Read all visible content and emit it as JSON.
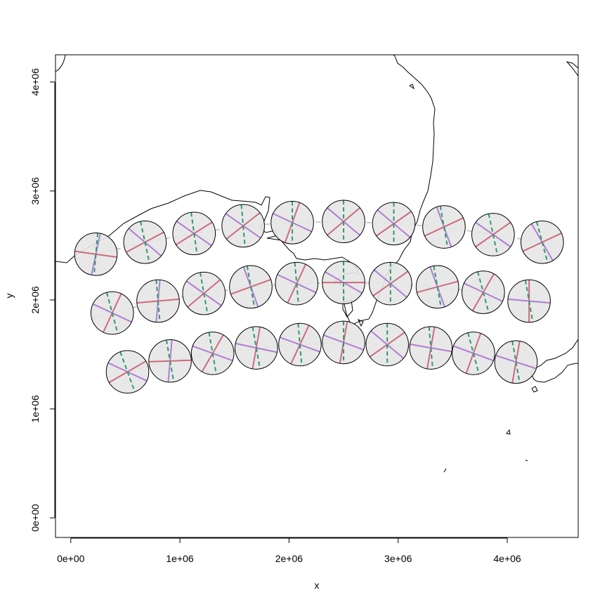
{
  "chart_data": {
    "type": "scatter",
    "title": "",
    "xlabel": "x",
    "ylabel": "y",
    "xlim": [
      -140000,
      4650000
    ],
    "ylim": [
      -180000,
      4250000
    ],
    "x_ticks": [
      {
        "value": 0,
        "label": "0e+00"
      },
      {
        "value": 1000000,
        "label": "1e+06"
      },
      {
        "value": 2000000,
        "label": "2e+06"
      },
      {
        "value": 3000000,
        "label": "3e+06"
      },
      {
        "value": 4000000,
        "label": "4e+06"
      }
    ],
    "y_ticks": [
      {
        "value": 0,
        "label": "0e+00"
      },
      {
        "value": 1000000,
        "label": "1e+06"
      },
      {
        "value": 2000000,
        "label": "2e+06"
      },
      {
        "value": 3000000,
        "label": "3e+06"
      },
      {
        "value": 4000000,
        "label": "4e+06"
      }
    ],
    "grid": false,
    "legend": "none",
    "colors": {
      "disc_fill": "#e5e5e5",
      "disc_stroke": "#000000",
      "pink_line": "#cd6b7e",
      "purple_line": "#b07ed2",
      "green_dashed": "#2e9b6a",
      "grey_dashed": "#bdbdbd",
      "coastline": "#000000"
    },
    "disc_radius": 195000,
    "indicatrix_rows": [
      {
        "row": "top",
        "points": [
          {
            "x": 230000,
            "y": 2420000,
            "pink": -8,
            "purple": -102,
            "green": -95
          },
          {
            "x": 680000,
            "y": 2530000,
            "pink": 28,
            "purple": -40,
            "green": -78
          },
          {
            "x": 1130000,
            "y": 2610000,
            "pink": 32,
            "purple": -35,
            "green": -82
          },
          {
            "x": 1580000,
            "y": 2680000,
            "pink": 38,
            "purple": -35,
            "green": -85
          },
          {
            "x": 2030000,
            "y": 2710000,
            "pink": 70,
            "purple": -25,
            "green": -90
          },
          {
            "x": 2500000,
            "y": 2720000,
            "pink": 40,
            "purple": -40,
            "green": -90
          },
          {
            "x": 2960000,
            "y": 2700000,
            "pink": 35,
            "purple": -40,
            "green": -90
          },
          {
            "x": 3420000,
            "y": 2670000,
            "pink": 25,
            "purple": -70,
            "green": -80
          },
          {
            "x": 3870000,
            "y": 2600000,
            "pink": 35,
            "purple": -35,
            "green": -78
          },
          {
            "x": 4320000,
            "y": 2530000,
            "pink": 25,
            "purple": -60,
            "green": -75
          }
        ]
      },
      {
        "row": "middle",
        "points": [
          {
            "x": 380000,
            "y": 1880000,
            "pink": 65,
            "purple": -25,
            "green": -75
          },
          {
            "x": 800000,
            "y": 1990000,
            "pink": 5,
            "purple": -95,
            "green": -85
          },
          {
            "x": 1220000,
            "y": 2060000,
            "pink": 40,
            "purple": -35,
            "green": -80
          },
          {
            "x": 1650000,
            "y": 2120000,
            "pink": 20,
            "purple": -70,
            "green": -80
          },
          {
            "x": 2070000,
            "y": 2150000,
            "pink": 65,
            "purple": -25,
            "green": -85
          },
          {
            "x": 2500000,
            "y": 2160000,
            "pink": 0,
            "purple": -30,
            "green": -90
          },
          {
            "x": 2930000,
            "y": 2150000,
            "pink": 35,
            "purple": -40,
            "green": -90
          },
          {
            "x": 3360000,
            "y": 2120000,
            "pink": 15,
            "purple": -70,
            "green": -80
          },
          {
            "x": 3780000,
            "y": 2070000,
            "pink": 60,
            "purple": -25,
            "green": -75
          },
          {
            "x": 4200000,
            "y": 1990000,
            "pink": 90,
            "purple": -5,
            "green": -80
          }
        ]
      },
      {
        "row": "bottom",
        "points": [
          {
            "x": 520000,
            "y": 1340000,
            "pink": 30,
            "purple": -25,
            "green": -70
          },
          {
            "x": 910000,
            "y": 1440000,
            "pink": 2,
            "purple": -95,
            "green": -80
          },
          {
            "x": 1300000,
            "y": 1510000,
            "pink": 60,
            "purple": -20,
            "green": -80
          },
          {
            "x": 1700000,
            "y": 1560000,
            "pink": 80,
            "purple": -12,
            "green": -80
          },
          {
            "x": 2100000,
            "y": 1590000,
            "pink": 65,
            "purple": -20,
            "green": -85
          },
          {
            "x": 2500000,
            "y": 1610000,
            "pink": 80,
            "purple": -20,
            "green": -90
          },
          {
            "x": 2900000,
            "y": 1590000,
            "pink": 35,
            "purple": -40,
            "green": -90
          },
          {
            "x": 3300000,
            "y": 1560000,
            "pink": 80,
            "purple": -10,
            "green": -85
          },
          {
            "x": 3690000,
            "y": 1510000,
            "pink": 70,
            "purple": -20,
            "green": -75
          },
          {
            "x": 4080000,
            "y": 1430000,
            "pink": 80,
            "purple": -18,
            "green": -80
          }
        ]
      }
    ]
  }
}
